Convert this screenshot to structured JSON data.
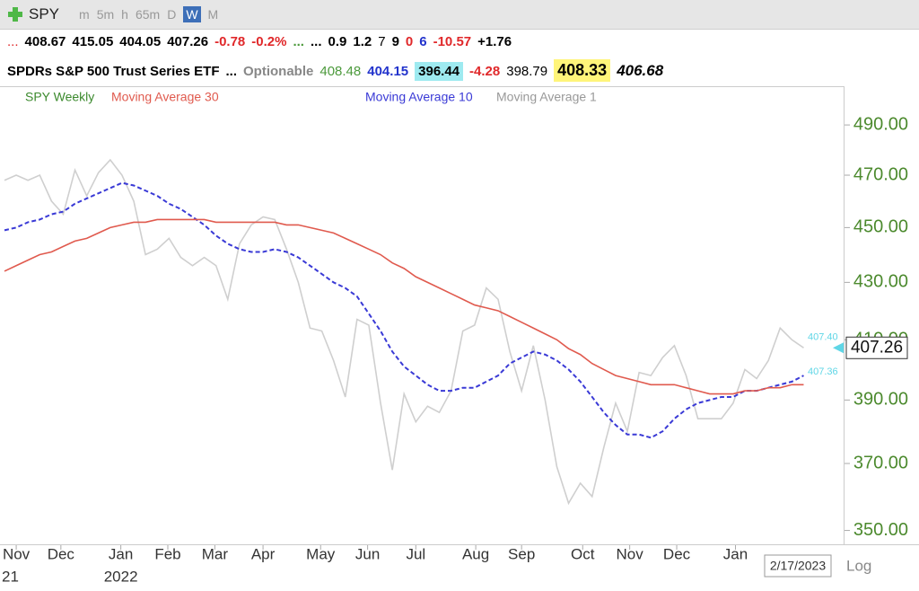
{
  "toolbar": {
    "symbol": "SPY",
    "intervals": [
      "m",
      "5m",
      "h",
      "65m",
      "D",
      "W",
      "M"
    ],
    "active_interval": 5
  },
  "quote_row1": [
    "...",
    "408.67",
    "415.05",
    "404.05",
    "407.26",
    "-0.78",
    "-0.2%",
    "...",
    "...",
    "0.9",
    "1.2",
    "7",
    "9",
    "0",
    "6",
    "-10.57",
    "+1.76"
  ],
  "quote_row2": [
    "SPDRs S&P 500 Trust Series ETF",
    "...",
    "Optionable",
    "408.48",
    "404.15",
    "396.44",
    "-4.28",
    "398.79",
    "408.33",
    "406.68"
  ],
  "chart_data": {
    "type": "line",
    "title": "SPY Weekly",
    "log_scale": true,
    "xlim": [
      -0.38,
      71.4
    ],
    "ylim": [
      346,
      506
    ],
    "yticks": [
      {
        "value": 350,
        "label": "350.00"
      },
      {
        "value": 370,
        "label": "370.00"
      },
      {
        "value": 390,
        "label": "390.00"
      },
      {
        "value": 410,
        "label": "410.00"
      },
      {
        "value": 430,
        "label": "430.00"
      },
      {
        "value": 450,
        "label": "450.00"
      },
      {
        "value": 470,
        "label": "470.00"
      },
      {
        "value": 490,
        "label": "490.00"
      }
    ],
    "xticks": [
      {
        "value": 1,
        "label": "Nov"
      },
      {
        "value": 4.8,
        "label": "Dec"
      },
      {
        "value": 9.9,
        "label": "Jan"
      },
      {
        "value": 13.9,
        "label": "Feb"
      },
      {
        "value": 17.9,
        "label": "Mar"
      },
      {
        "value": 22,
        "label": "Apr"
      },
      {
        "value": 26.9,
        "label": "May"
      },
      {
        "value": 30.9,
        "label": "Jun"
      },
      {
        "value": 35,
        "label": "Jul"
      },
      {
        "value": 40.1,
        "label": "Aug"
      },
      {
        "value": 44,
        "label": "Sep"
      },
      {
        "value": 49.2,
        "label": "Oct"
      },
      {
        "value": 53.2,
        "label": "Nov"
      },
      {
        "value": 57.2,
        "label": "Dec"
      },
      {
        "value": 62.2,
        "label": "Jan"
      }
    ],
    "year_labels": [
      {
        "value": -0.3,
        "label": "21"
      },
      {
        "value": 9.9,
        "label": "2022"
      }
    ],
    "last_date": "2/17/2023",
    "scale_button": "Log",
    "series": [
      {
        "name": "Moving Average 30",
        "color": "#e05a4e",
        "dashed": false,
        "values": [
          434,
          436,
          438,
          440,
          441,
          443,
          445,
          446,
          448,
          450,
          451,
          452,
          452,
          453,
          453,
          453,
          453,
          453,
          452,
          452,
          452,
          452,
          452,
          452,
          451,
          451,
          450,
          449,
          448,
          446,
          444,
          442,
          440,
          437,
          435,
          432,
          430,
          428,
          426,
          424,
          422,
          421,
          420,
          418,
          416,
          414,
          412,
          410,
          407,
          405,
          402,
          400,
          398,
          397,
          396,
          395,
          395,
          395,
          394,
          393,
          392,
          392,
          392,
          393,
          393,
          394,
          394,
          395,
          395
        ]
      },
      {
        "name": "Moving Average 10",
        "color": "#3a3ad6",
        "dashed": true,
        "values": [
          449,
          450,
          452,
          453,
          455,
          456,
          459,
          461,
          463,
          465,
          467,
          466,
          464,
          462,
          459,
          457,
          454,
          451,
          447,
          444,
          442,
          441,
          441,
          442,
          441,
          439,
          436,
          433,
          430,
          428,
          425,
          419,
          413,
          406,
          401,
          398,
          395,
          393,
          393,
          394,
          394,
          396,
          398,
          402,
          404,
          406,
          405,
          403,
          400,
          396,
          391,
          386,
          382,
          379,
          379,
          378,
          380,
          384,
          387,
          389,
          390,
          391,
          391,
          393,
          393,
          394,
          395,
          396,
          398
        ]
      },
      {
        "name": "Moving Average 1",
        "color": "#cfcfcf",
        "dashed": false,
        "values": [
          468,
          470,
          468,
          470,
          460,
          455,
          472,
          462,
          471,
          476,
          470,
          460,
          440,
          442,
          446,
          439,
          436,
          439,
          436,
          424,
          444,
          451,
          454,
          453,
          442,
          430,
          414,
          413,
          403,
          391,
          417,
          415,
          389,
          368,
          392,
          383,
          388,
          386,
          393,
          413,
          415,
          428,
          424,
          406,
          393,
          408,
          390,
          369,
          358,
          364,
          360,
          375,
          389,
          380,
          399,
          398,
          404,
          408,
          398,
          384,
          384,
          384,
          389,
          400,
          397,
          403,
          414,
          410,
          407.26
        ]
      }
    ],
    "price_markers": [
      {
        "value": 407.4,
        "label": "407.40"
      },
      {
        "value": 407.36,
        "label": "407.36"
      }
    ],
    "last_price": 407.26
  }
}
